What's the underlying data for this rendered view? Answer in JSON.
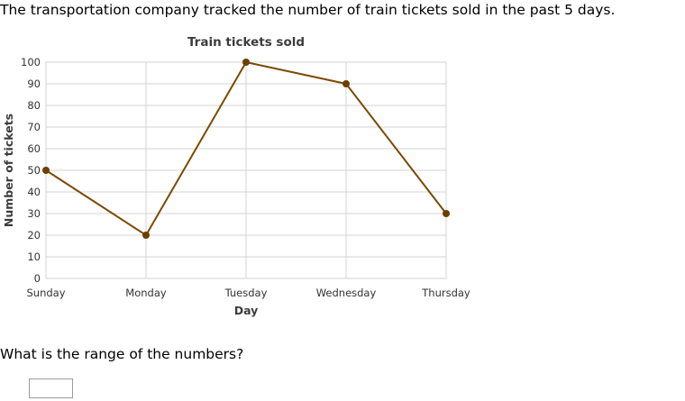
{
  "problem": {
    "intro": "The transportation company tracked the number of train tickets sold in the past 5 days.",
    "question": "What is the range of the numbers?",
    "answer_value": ""
  },
  "chart_data": {
    "type": "line",
    "title": "Train tickets sold",
    "xlabel": "Day",
    "ylabel": "Number of tickets",
    "categories": [
      "Sunday",
      "Monday",
      "Tuesday",
      "Wednesday",
      "Thursday"
    ],
    "values": [
      50,
      20,
      100,
      90,
      30
    ],
    "ylim": [
      0,
      100
    ],
    "yticks": [
      0,
      10,
      20,
      30,
      40,
      50,
      60,
      70,
      80,
      90,
      100
    ],
    "grid": true,
    "line_color": "#7a4a00",
    "marker_color": "#6b3f00"
  }
}
